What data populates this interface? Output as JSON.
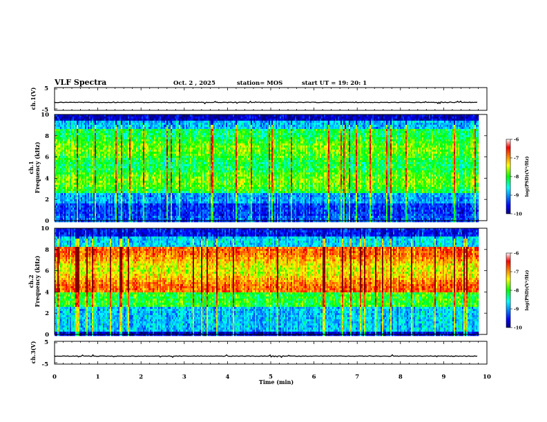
{
  "header": {
    "title": "VLF Spectra",
    "date": "Oct. 2  , 2025",
    "station": "station= MOS",
    "start": "start  UT  =   19: 20: 1"
  },
  "chart_data": [
    {
      "type": "line",
      "name": "ch1-waveform",
      "ylabel": "ch.1(V)",
      "ylim": [
        -5,
        5
      ],
      "yticks": [
        "5",
        "-5"
      ],
      "baseline": -1.5,
      "xlim": [
        0,
        10
      ]
    },
    {
      "type": "heatmap",
      "name": "ch1-spectrogram",
      "ylabel_top": "ch.1",
      "ylabel": "Frequency (kHz)",
      "ylim": [
        0,
        10
      ],
      "yticks": [
        "0",
        "2",
        "4",
        "6",
        "8",
        "10"
      ],
      "xlim": [
        0,
        10
      ],
      "data_extent_min": 9.8,
      "colorbar": {
        "label": "log(PSD)(V²/Hz)",
        "range": [
          -10,
          -6
        ],
        "ticks": [
          "-6",
          "-7",
          "-8",
          "-9",
          "-10"
        ]
      }
    },
    {
      "type": "heatmap",
      "name": "ch2-spectrogram",
      "ylabel_top": "ch.2",
      "ylabel": "Frequency (kHz)",
      "ylim": [
        0,
        10
      ],
      "yticks": [
        "0",
        "2",
        "4",
        "6",
        "8",
        "10"
      ],
      "xlim": [
        0,
        10
      ],
      "data_extent_min": 9.8,
      "colorbar": {
        "label": "log(PSD)(V²/Hz)",
        "range": [
          -10,
          -6
        ],
        "ticks": [
          "-6",
          "-7",
          "-8",
          "-9",
          "-10"
        ]
      }
    },
    {
      "type": "line",
      "name": "ch3-waveform",
      "ylabel": "ch.3(V)",
      "ylim": [
        -5,
        5
      ],
      "yticks": [
        "5",
        "-5"
      ],
      "baseline": -1.5,
      "xlim": [
        0,
        10
      ],
      "xlabel": "Time  (min)",
      "xticks": [
        "0",
        "1",
        "2",
        "3",
        "4",
        "5",
        "6",
        "7",
        "8",
        "9",
        "10"
      ]
    }
  ]
}
